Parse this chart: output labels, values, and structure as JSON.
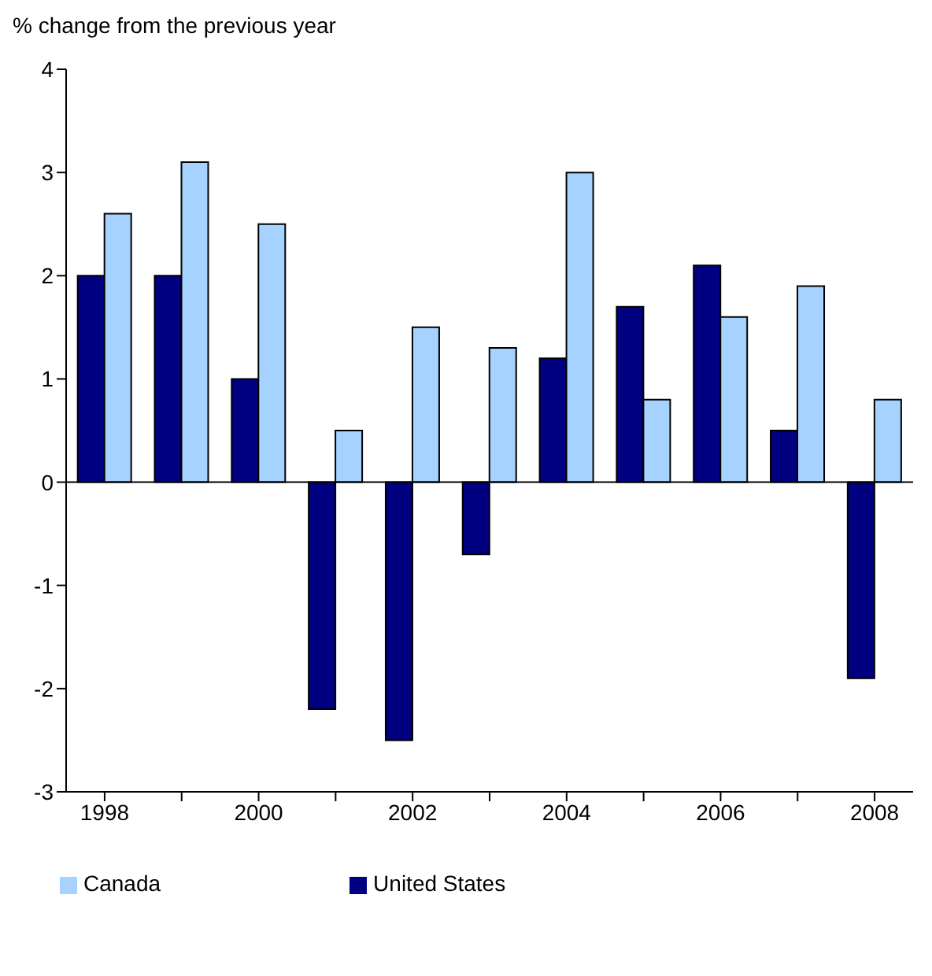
{
  "chart_data": {
    "type": "bar",
    "ylabel": "% change from the previous year",
    "categories": [
      "1998",
      null,
      "2000",
      null,
      "2002",
      null,
      "2004",
      null,
      "2006",
      null,
      "2008"
    ],
    "series": [
      {
        "name": "United States",
        "color": "#000080",
        "values": [
          2.0,
          2.0,
          1.0,
          -2.2,
          -2.5,
          -0.7,
          1.2,
          1.7,
          2.1,
          0.5,
          -1.9
        ]
      },
      {
        "name": "Canada",
        "color": "#a6d2ff",
        "values": [
          2.6,
          3.1,
          2.5,
          0.5,
          1.5,
          1.3,
          3.0,
          0.8,
          1.6,
          1.9,
          0.8
        ]
      }
    ],
    "ylim": [
      -3,
      4
    ],
    "yticks": [
      -3,
      -2,
      -1,
      0,
      1,
      2,
      3,
      4
    ],
    "ref_lines": [
      {
        "axis": "y",
        "value": 0,
        "color": "#000000"
      }
    ],
    "legend": "bottom left"
  }
}
